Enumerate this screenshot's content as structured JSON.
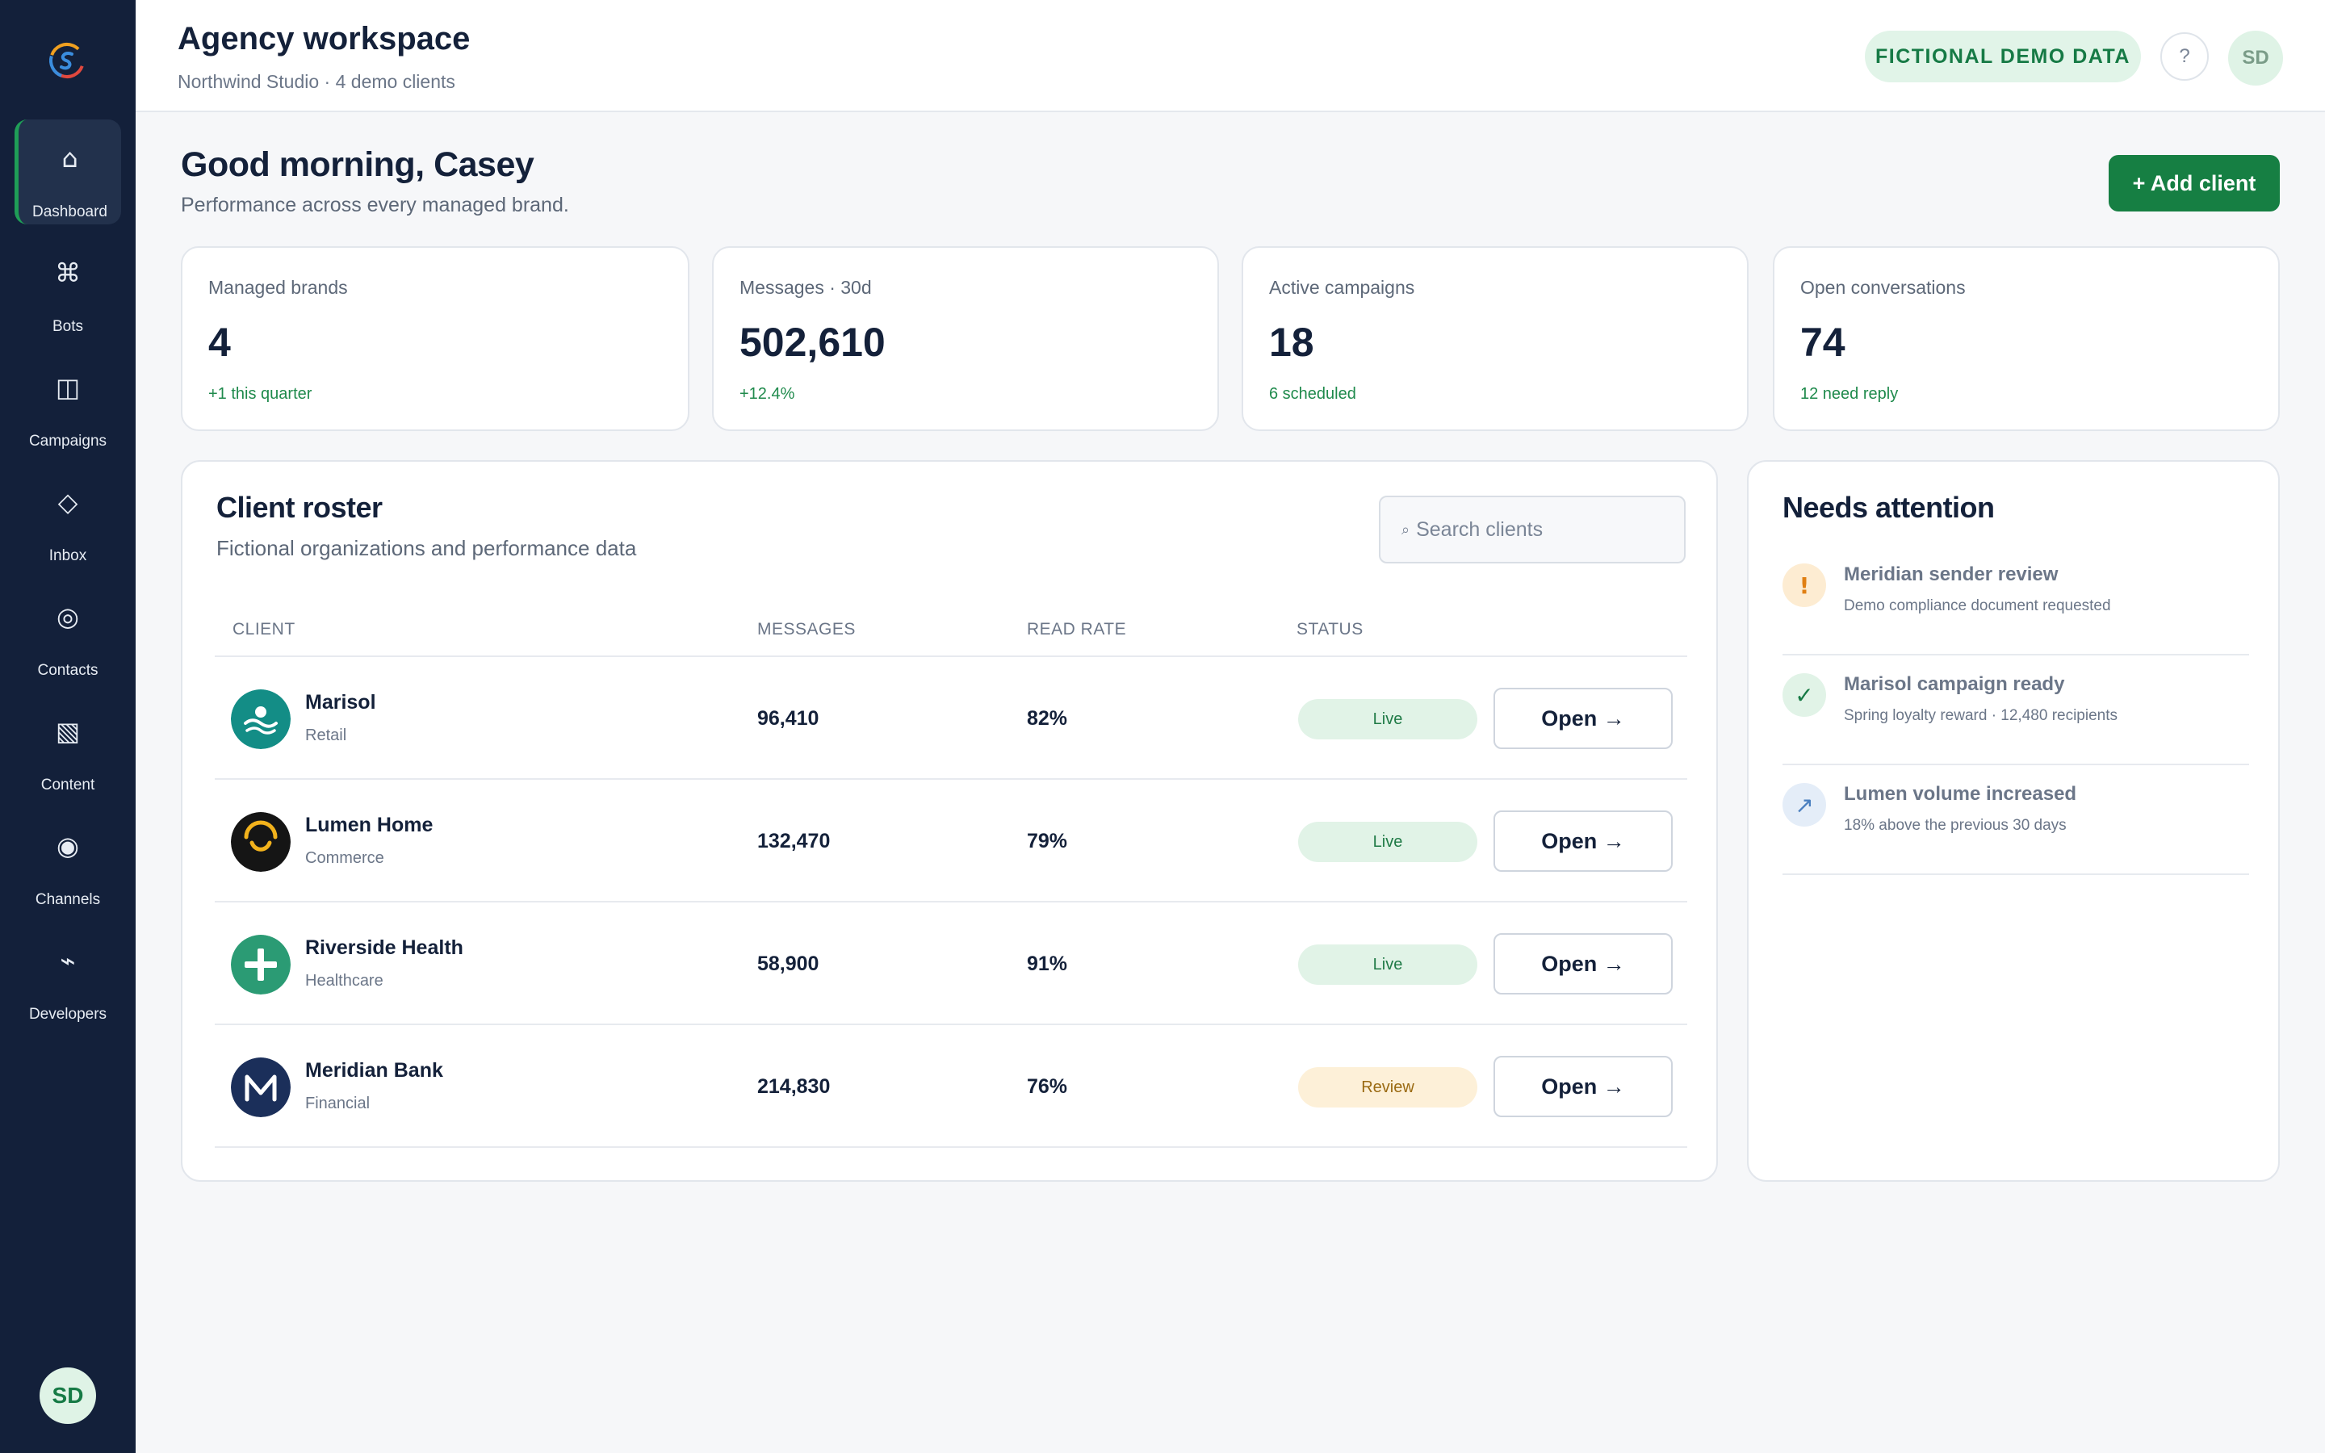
{
  "sidebar": {
    "logo": "brand-logo",
    "items": [
      {
        "label": "Dashboard",
        "icon": "⌂",
        "icon_name": "home-icon",
        "active": true
      },
      {
        "label": "Bots",
        "icon": "⌘",
        "icon_name": "command-icon",
        "active": false
      },
      {
        "label": "Campaigns",
        "icon": "◫",
        "icon_name": "campaigns-icon",
        "active": false
      },
      {
        "label": "Inbox",
        "icon": "◇",
        "icon_name": "inbox-icon",
        "active": false
      },
      {
        "label": "Contacts",
        "icon": "◎",
        "icon_name": "contacts-icon",
        "active": false
      },
      {
        "label": "Content",
        "icon": "▧",
        "icon_name": "content-icon",
        "active": false
      },
      {
        "label": "Channels",
        "icon": "◉",
        "icon_name": "channels-icon",
        "active": false
      },
      {
        "label": "Developers",
        "icon": "⌁",
        "icon_name": "developers-icon",
        "active": false
      }
    ],
    "user_initials": "SD"
  },
  "header": {
    "title": "Agency workspace",
    "subtitle": "Northwind Studio · 4 demo clients",
    "badge": "FICTIONAL DEMO DATA",
    "help": "?",
    "user_initials": "SD"
  },
  "greeting": {
    "title": "Good morning, Casey",
    "subtitle": "Performance across every managed brand.",
    "add_button": "+ Add client"
  },
  "stats": [
    {
      "label": "Managed brands",
      "value": "4",
      "delta": "+1 this quarter"
    },
    {
      "label": "Messages · 30d",
      "value": "502,610",
      "delta": "+12.4%"
    },
    {
      "label": "Active campaigns",
      "value": "18",
      "delta": "6 scheduled"
    },
    {
      "label": "Open conversations",
      "value": "74",
      "delta": "12 need reply"
    }
  ],
  "roster": {
    "title": "Client roster",
    "subtitle": "Fictional organizations and performance data",
    "search_icon": "⌕",
    "search_placeholder": "Search clients",
    "columns": {
      "client": "CLIENT",
      "messages": "MESSAGES",
      "read_rate": "READ RATE",
      "status": "STATUS"
    },
    "open_label": "Open →",
    "rows": [
      {
        "name": "Marisol",
        "category": "Retail",
        "messages": "96,410",
        "read_rate": "82%",
        "status": "Live",
        "logo": "wave-logo"
      },
      {
        "name": "Lumen Home",
        "category": "Commerce",
        "messages": "132,470",
        "read_rate": "79%",
        "status": "Live",
        "logo": "arc-logo"
      },
      {
        "name": "Riverside Health",
        "category": "Healthcare",
        "messages": "58,900",
        "read_rate": "91%",
        "status": "Live",
        "logo": "cross-logo"
      },
      {
        "name": "Meridian Bank",
        "category": "Financial",
        "messages": "214,830",
        "read_rate": "76%",
        "status": "Review",
        "logo": "m-logo"
      }
    ]
  },
  "attention": {
    "title": "Needs attention",
    "items": [
      {
        "icon": "!",
        "icon_name": "warning-icon",
        "title": "Meridian sender review",
        "description": "Demo compliance document requested"
      },
      {
        "icon": "✓",
        "icon_name": "check-icon",
        "title": "Marisol campaign ready",
        "description": "Spring loyalty reward · 12,480 recipients"
      },
      {
        "icon": "↗",
        "icon_name": "trend-up-icon",
        "title": "Lumen volume increased",
        "description": "18% above the previous 30 days"
      }
    ]
  },
  "colors": {
    "sidebar": "#13203a",
    "accent": "#167f43",
    "live_bg": "#e1f3e7",
    "review_bg": "#fdf0d8"
  }
}
